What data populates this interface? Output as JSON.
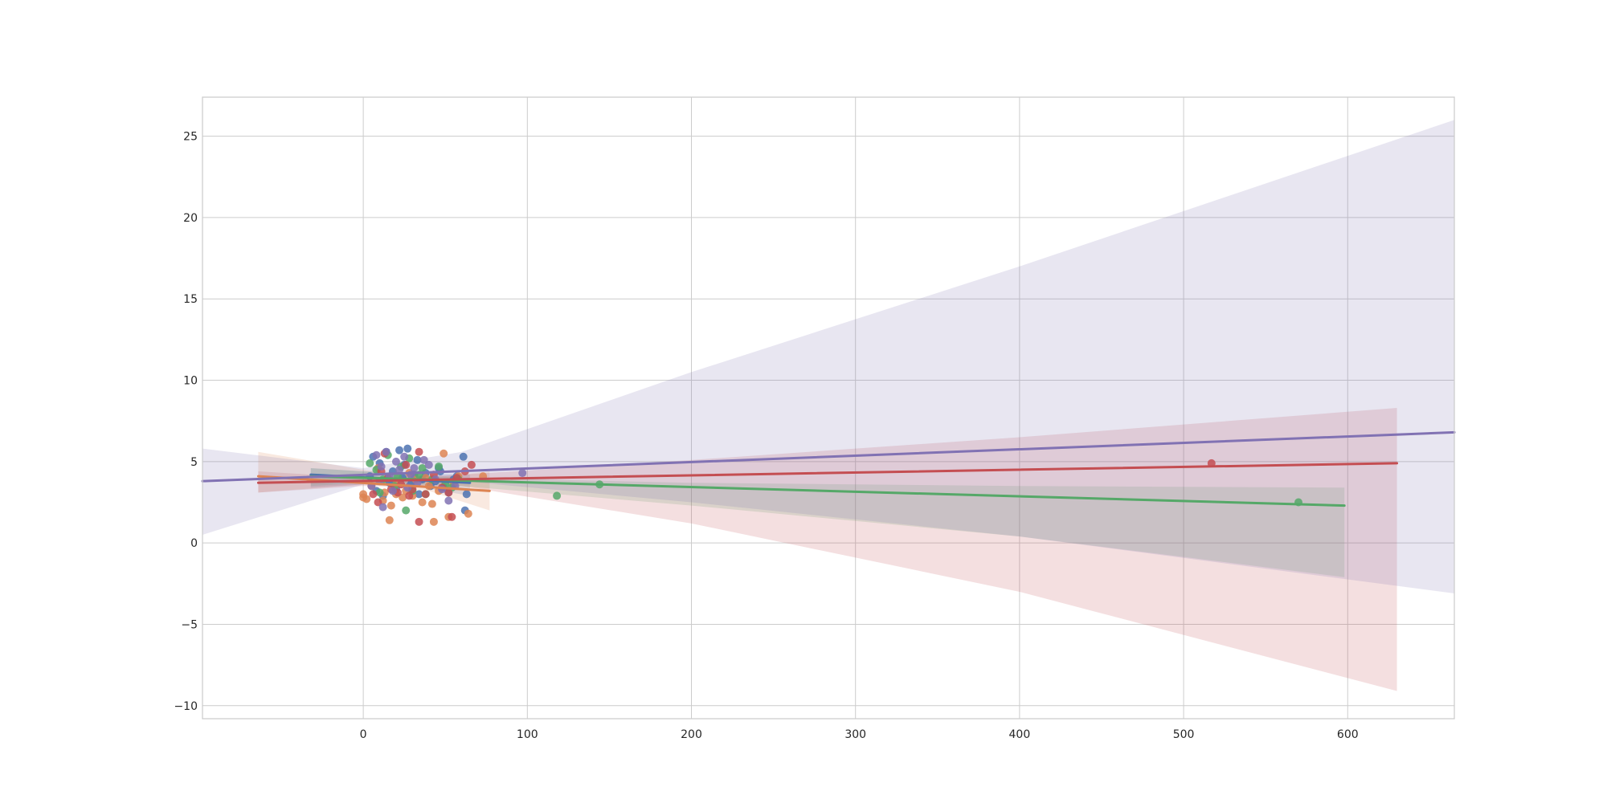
{
  "chart_data": {
    "type": "scatter",
    "title": "",
    "xlabel": "",
    "ylabel": "",
    "xlim": [
      -98,
      665
    ],
    "ylim": [
      -10.8,
      27.4
    ],
    "grid": true,
    "legend": "none",
    "xticks": [
      0,
      100,
      200,
      300,
      400,
      500,
      600
    ],
    "yticks": [
      -10,
      -5,
      0,
      5,
      10,
      15,
      20,
      25
    ],
    "xtick_labels": [
      "0",
      "100",
      "200",
      "300",
      "400",
      "500",
      "600"
    ],
    "ytick_labels": [
      "−10",
      "−5",
      "0",
      "5",
      "10",
      "15",
      "20",
      "25"
    ],
    "series": [
      {
        "color": "#4c72b0",
        "regression": {
          "x": [
            -32,
            65
          ],
          "y": [
            4.2,
            3.7
          ]
        },
        "band": {
          "x": [
            -32,
            0,
            30,
            65
          ],
          "lower": [
            3.4,
            3.6,
            3.5,
            2.9
          ],
          "upper": [
            4.6,
            4.4,
            4.3,
            4.2
          ]
        },
        "points": [
          [
            6,
            5.3
          ],
          [
            10,
            4.9
          ],
          [
            14,
            5.6
          ],
          [
            18,
            4.4
          ],
          [
            22,
            5.7
          ],
          [
            27,
            5.8
          ],
          [
            31,
            4.2
          ],
          [
            36,
            3.9
          ],
          [
            41,
            3.5
          ],
          [
            46,
            4.6
          ],
          [
            52,
            3.1
          ],
          [
            57,
            4.1
          ],
          [
            61,
            5.3
          ],
          [
            62,
            2.0
          ],
          [
            63,
            3.0
          ],
          [
            8,
            3.2
          ],
          [
            12,
            2.9
          ],
          [
            16,
            3.7
          ],
          [
            20,
            3.3
          ],
          [
            25,
            4.8
          ],
          [
            29,
            3.6
          ],
          [
            34,
            3.0
          ],
          [
            38,
            4.3
          ],
          [
            44,
            3.8
          ],
          [
            49,
            3.4
          ],
          [
            55,
            3.9
          ],
          [
            4,
            4.1
          ],
          [
            24,
            4.0
          ],
          [
            33,
            5.1
          ],
          [
            47,
            4.4
          ]
        ]
      },
      {
        "color": "#dd8452",
        "regression": {
          "x": [
            -64,
            77
          ],
          "y": [
            4.1,
            3.2
          ]
        },
        "band": {
          "x": [
            -64,
            0,
            40,
            77
          ],
          "lower": [
            3.1,
            3.6,
            3.2,
            2.0
          ],
          "upper": [
            5.6,
            4.5,
            4.0,
            4.4
          ]
        },
        "points": [
          [
            0,
            2.8
          ],
          [
            0,
            3.0
          ],
          [
            2,
            2.7
          ],
          [
            5,
            3.5
          ],
          [
            9,
            4.6
          ],
          [
            13,
            3.1
          ],
          [
            16,
            1.4
          ],
          [
            17,
            2.3
          ],
          [
            20,
            3.6
          ],
          [
            24,
            2.8
          ],
          [
            28,
            4.3
          ],
          [
            32,
            3.9
          ],
          [
            36,
            2.5
          ],
          [
            40,
            3.5
          ],
          [
            42,
            2.4
          ],
          [
            43,
            1.3
          ],
          [
            46,
            3.2
          ],
          [
            49,
            5.5
          ],
          [
            52,
            1.6
          ],
          [
            55,
            3.6
          ],
          [
            58,
            4.1
          ],
          [
            64,
            1.8
          ],
          [
            73,
            4.1
          ],
          [
            26,
            3.2
          ],
          [
            30,
            2.9
          ],
          [
            12,
            2.6
          ],
          [
            38,
            4.0
          ],
          [
            20,
            3.0
          ]
        ]
      },
      {
        "color": "#55a868",
        "regression": {
          "x": [
            -32,
            598
          ],
          "y": [
            4.1,
            2.3
          ]
        },
        "band": {
          "x": [
            -32,
            0,
            60,
            200,
            400,
            598
          ],
          "lower": [
            3.5,
            3.7,
            3.5,
            2.3,
            0.4,
            -2.1
          ],
          "upper": [
            4.6,
            4.4,
            4.0,
            3.7,
            3.5,
            3.4
          ]
        },
        "points": [
          [
            4,
            4.9
          ],
          [
            8,
            4.5
          ],
          [
            12,
            3.9
          ],
          [
            15,
            5.4
          ],
          [
            19,
            3.5
          ],
          [
            23,
            4.7
          ],
          [
            26,
            2.0
          ],
          [
            30,
            3.2
          ],
          [
            34,
            4.2
          ],
          [
            38,
            3.0
          ],
          [
            42,
            3.9
          ],
          [
            46,
            4.7
          ],
          [
            50,
            3.6
          ],
          [
            54,
            3.4
          ],
          [
            58,
            3.9
          ],
          [
            118,
            2.9
          ],
          [
            144,
            3.6
          ],
          [
            570,
            2.5
          ],
          [
            10,
            3.1
          ],
          [
            21,
            4.1
          ],
          [
            28,
            5.2
          ],
          [
            36,
            4.6
          ]
        ]
      },
      {
        "color": "#c44e52",
        "regression": {
          "x": [
            -64,
            630
          ],
          "y": [
            3.7,
            4.9
          ]
        },
        "band": {
          "x": [
            -64,
            0,
            60,
            200,
            400,
            630
          ],
          "lower": [
            3.1,
            3.5,
            3.5,
            1.2,
            -3.0,
            -9.1
          ],
          "upper": [
            4.4,
            4.0,
            4.2,
            5.1,
            6.5,
            8.3
          ]
        },
        "points": [
          [
            6,
            3.0
          ],
          [
            9,
            2.5
          ],
          [
            11,
            4.4
          ],
          [
            13,
            5.5
          ],
          [
            17,
            3.3
          ],
          [
            21,
            3.1
          ],
          [
            26,
            4.8
          ],
          [
            30,
            3.3
          ],
          [
            34,
            5.6
          ],
          [
            38,
            3.0
          ],
          [
            43,
            4.2
          ],
          [
            48,
            3.4
          ],
          [
            52,
            3.1
          ],
          [
            54,
            1.6
          ],
          [
            57,
            4.0
          ],
          [
            62,
            4.4
          ],
          [
            66,
            4.8
          ],
          [
            34,
            1.3
          ],
          [
            517,
            4.9
          ],
          [
            15,
            4.0
          ],
          [
            23,
            3.6
          ],
          [
            28,
            2.9
          ]
        ]
      },
      {
        "color": "#8172b3",
        "regression": {
          "x": [
            -98,
            665
          ],
          "y": [
            3.8,
            6.8
          ]
        },
        "band": {
          "x": [
            -98,
            0,
            60,
            200,
            400,
            665
          ],
          "lower": [
            0.5,
            3.6,
            3.8,
            2.5,
            0.4,
            -3.1
          ],
          "upper": [
            5.8,
            4.6,
            5.6,
            10.5,
            17.0,
            26.0
          ]
        },
        "points": [
          [
            5,
            3.5
          ],
          [
            8,
            5.4
          ],
          [
            11,
            4.7
          ],
          [
            14,
            5.6
          ],
          [
            18,
            3.2
          ],
          [
            22,
            4.5
          ],
          [
            25,
            5.3
          ],
          [
            29,
            4.2
          ],
          [
            33,
            3.7
          ],
          [
            37,
            5.1
          ],
          [
            40,
            4.8
          ],
          [
            44,
            3.9
          ],
          [
            48,
            3.3
          ],
          [
            52,
            2.6
          ],
          [
            56,
            3.5
          ],
          [
            97,
            4.3
          ],
          [
            12,
            2.2
          ],
          [
            16,
            4.1
          ],
          [
            20,
            5.0
          ],
          [
            27,
            3.4
          ],
          [
            31,
            4.6
          ],
          [
            10,
            3.8
          ]
        ]
      }
    ]
  }
}
